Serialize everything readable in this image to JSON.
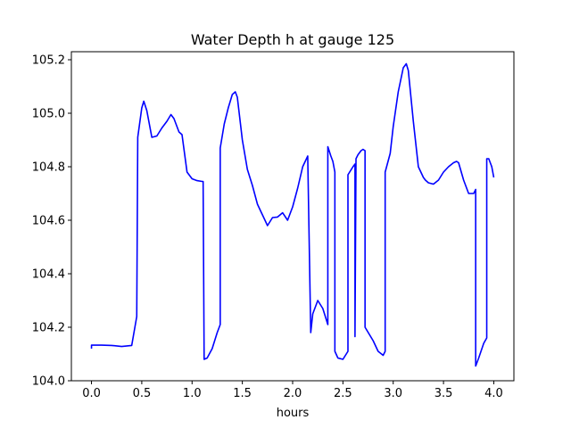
{
  "chart_data": {
    "type": "line",
    "title": "Water Depth h at gauge 125",
    "xlabel": "hours",
    "ylabel": "",
    "xlim": [
      -0.2,
      4.2
    ],
    "ylim": [
      104.0,
      105.23
    ],
    "xticks": [
      0.0,
      0.5,
      1.0,
      1.5,
      2.0,
      2.5,
      3.0,
      3.5,
      4.0
    ],
    "xtick_labels": [
      "0.0",
      "0.5",
      "1.0",
      "1.5",
      "2.0",
      "2.5",
      "3.0",
      "3.5",
      "4.0"
    ],
    "yticks": [
      104.0,
      104.2,
      104.4,
      104.6,
      104.8,
      105.0,
      105.2
    ],
    "ytick_labels": [
      "104.0",
      "104.2",
      "104.4",
      "104.6",
      "104.8",
      "105.0",
      "105.2"
    ],
    "grid": false,
    "series": [
      {
        "color": "#0000ff",
        "x": [
          0.0,
          0.0,
          0.1,
          0.2,
          0.3,
          0.4,
          0.45,
          0.46,
          0.46,
          0.5,
          0.52,
          0.55,
          0.6,
          0.65,
          0.7,
          0.75,
          0.79,
          0.82,
          0.87,
          0.9,
          0.95,
          1.0,
          1.05,
          1.1,
          1.11,
          1.12,
          1.15,
          1.2,
          1.25,
          1.28,
          1.28,
          1.32,
          1.36,
          1.4,
          1.43,
          1.45,
          1.5,
          1.55,
          1.6,
          1.65,
          1.7,
          1.75,
          1.8,
          1.85,
          1.9,
          1.95,
          2.0,
          2.05,
          2.1,
          2.15,
          2.18,
          2.18,
          2.2,
          2.25,
          2.3,
          2.35,
          2.35,
          2.38,
          2.4,
          2.42,
          2.42,
          2.45,
          2.5,
          2.55,
          2.55,
          2.6,
          2.62,
          2.62,
          2.63,
          2.63,
          2.65,
          2.68,
          2.7,
          2.72,
          2.72,
          2.8,
          2.85,
          2.9,
          2.92,
          2.92,
          2.97,
          3.0,
          3.05,
          3.1,
          3.13,
          3.15,
          3.2,
          3.25,
          3.3,
          3.32,
          3.35,
          3.4,
          3.45,
          3.5,
          3.55,
          3.6,
          3.63,
          3.65,
          3.7,
          3.75,
          3.8,
          3.82,
          3.82,
          3.85,
          3.9,
          3.93,
          3.93,
          3.95,
          3.98,
          4.0
        ],
        "y": [
          104.12,
          104.133,
          104.133,
          104.132,
          104.128,
          104.132,
          104.24,
          104.91,
          104.91,
          105.02,
          105.045,
          105.01,
          104.91,
          104.915,
          104.945,
          104.97,
          104.995,
          104.98,
          104.93,
          104.92,
          104.78,
          104.755,
          104.748,
          104.745,
          104.745,
          104.08,
          104.085,
          104.12,
          104.18,
          104.21,
          104.87,
          104.96,
          105.02,
          105.07,
          105.08,
          105.06,
          104.9,
          104.79,
          104.73,
          104.66,
          104.62,
          104.58,
          104.61,
          104.612,
          104.628,
          104.6,
          104.65,
          104.72,
          104.8,
          104.84,
          104.18,
          104.18,
          104.25,
          104.3,
          104.27,
          104.21,
          104.875,
          104.84,
          104.82,
          104.78,
          104.11,
          104.085,
          104.08,
          104.11,
          104.77,
          104.8,
          104.81,
          104.165,
          104.83,
          104.83,
          104.845,
          104.86,
          104.865,
          104.86,
          104.2,
          104.15,
          104.11,
          104.095,
          104.11,
          104.78,
          104.85,
          104.95,
          105.08,
          105.17,
          105.185,
          105.16,
          104.97,
          104.8,
          104.76,
          104.75,
          104.74,
          104.735,
          104.75,
          104.78,
          104.8,
          104.815,
          104.82,
          104.815,
          104.75,
          104.7,
          104.7,
          104.715,
          104.055,
          104.085,
          104.14,
          104.16,
          104.83,
          104.83,
          104.8,
          104.76
        ]
      }
    ]
  }
}
